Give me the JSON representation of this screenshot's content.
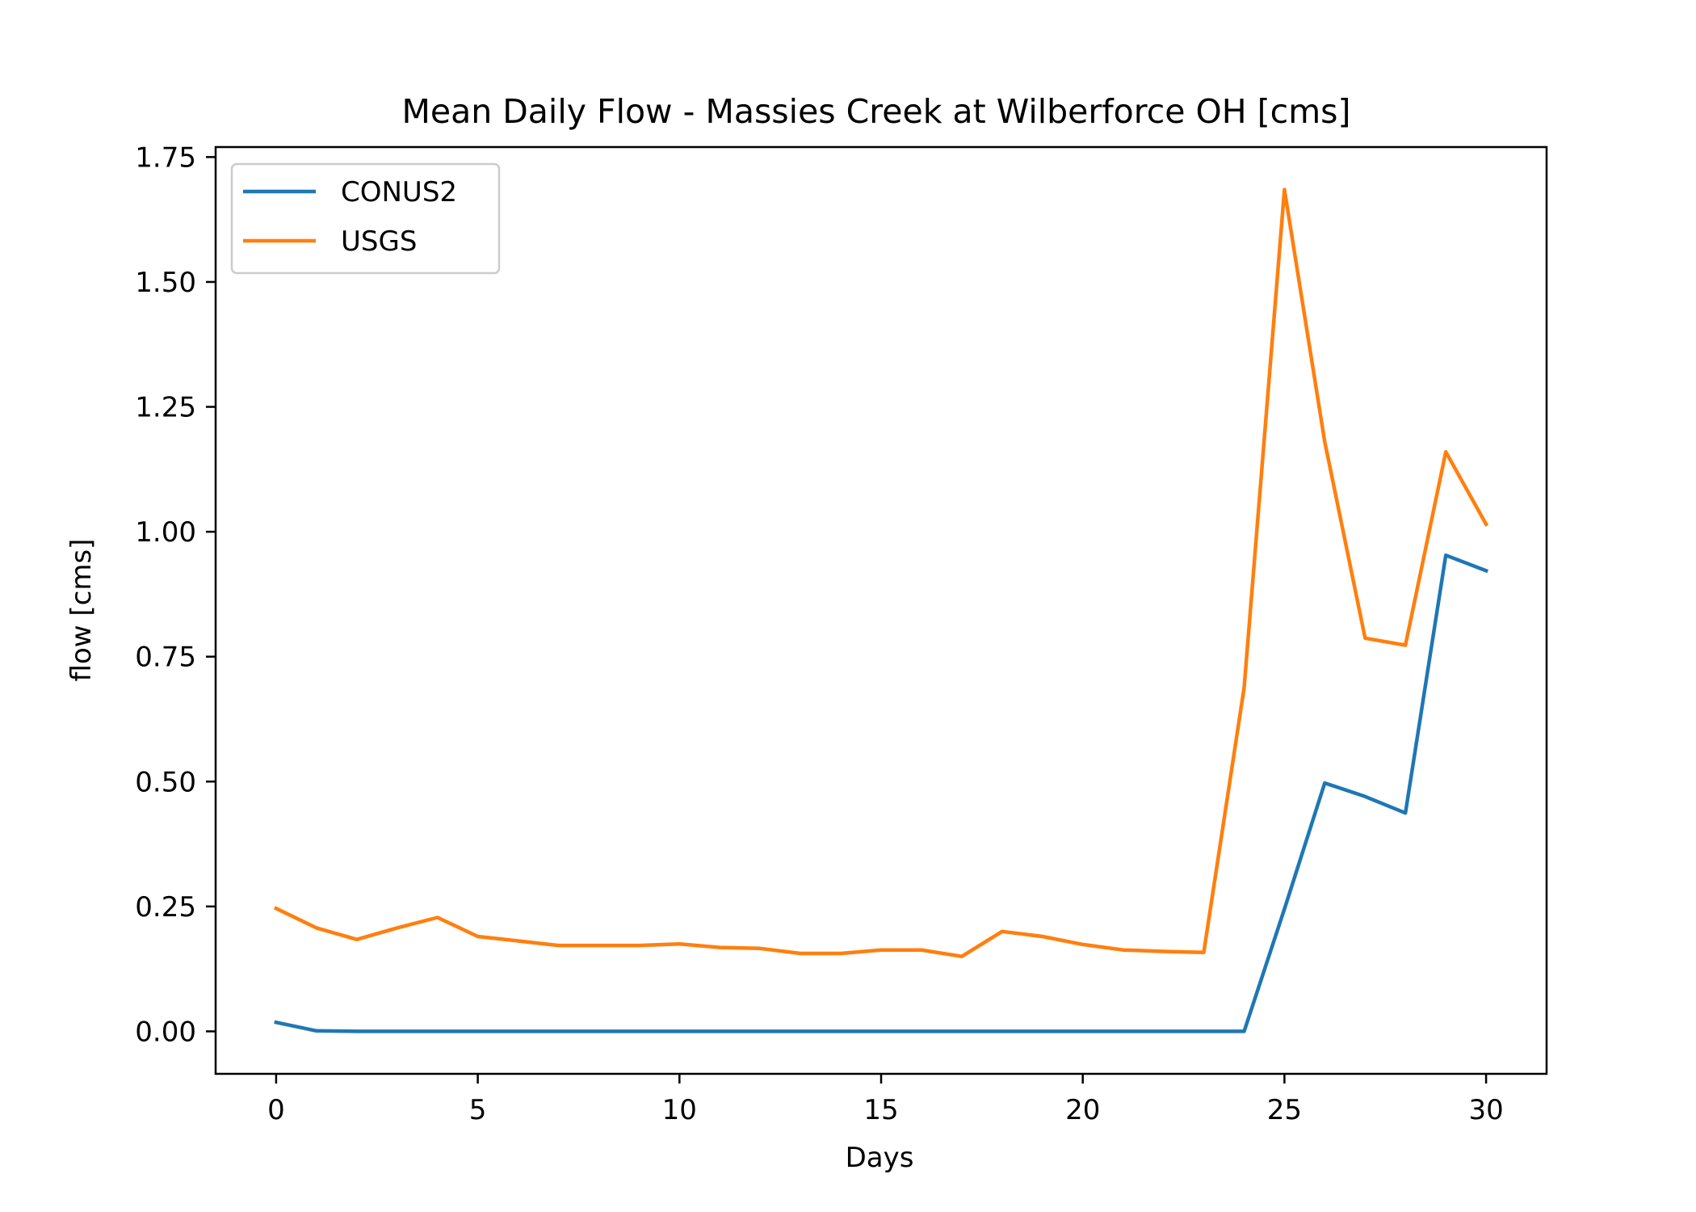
{
  "chart_data": {
    "type": "line",
    "title": "Mean Daily Flow - Massies Creek at Wilberforce OH [cms]",
    "xlabel": "Days",
    "ylabel": "flow [cms]",
    "xlim": [
      -1.5,
      31.5
    ],
    "ylim": [
      -0.085,
      1.77
    ],
    "xticks": [
      0,
      5,
      10,
      15,
      20,
      25,
      30
    ],
    "xtick_labels": [
      "0",
      "5",
      "10",
      "15",
      "20",
      "25",
      "30"
    ],
    "yticks": [
      0,
      0.25,
      0.5,
      0.75,
      1.0,
      1.25,
      1.5,
      1.75
    ],
    "ytick_labels": [
      "0.00",
      "0.25",
      "0.50",
      "0.75",
      "1.00",
      "1.25",
      "1.50",
      "1.75"
    ],
    "grid": false,
    "legend_position": "upper-left",
    "x": [
      0,
      1,
      2,
      3,
      4,
      5,
      6,
      7,
      8,
      9,
      10,
      11,
      12,
      13,
      14,
      15,
      16,
      17,
      18,
      19,
      20,
      21,
      22,
      23,
      24,
      25,
      26,
      27,
      28,
      29,
      30
    ],
    "series": [
      {
        "name": "CONUS2",
        "color": "#1f77b4",
        "values": [
          0.018,
          0.001,
          0.0,
          0.0,
          0.0,
          0.0,
          0.0,
          0.0,
          0.0,
          0.0,
          0.0,
          0.0,
          0.0,
          0.0,
          0.0,
          0.0,
          0.0,
          0.0,
          0.0,
          0.0,
          0.0,
          0.0,
          0.0,
          0.0,
          0.0,
          0.245,
          0.497,
          0.47,
          0.437,
          0.953,
          0.922
        ]
      },
      {
        "name": "USGS",
        "color": "#ff7f0e",
        "values": [
          0.246,
          0.207,
          0.184,
          0.207,
          0.228,
          0.19,
          0.181,
          0.172,
          0.172,
          0.172,
          0.175,
          0.168,
          0.166,
          0.156,
          0.156,
          0.163,
          0.163,
          0.15,
          0.2,
          0.19,
          0.174,
          0.163,
          0.16,
          0.158,
          0.688,
          1.685,
          1.18,
          0.787,
          0.773,
          1.16,
          1.015
        ]
      }
    ]
  }
}
